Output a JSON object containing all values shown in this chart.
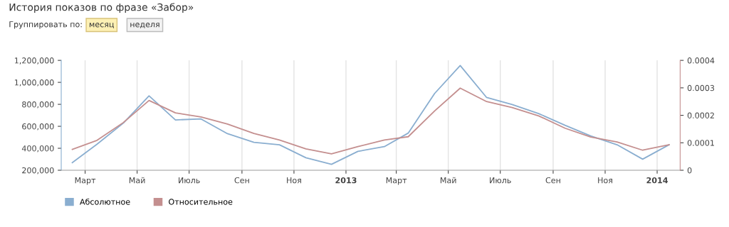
{
  "chart_data": {
    "type": "line",
    "title": "История показов по фразе «Забор»",
    "annotations": [
      "Группировать по:",
      "месяц",
      "неделя"
    ],
    "x": [
      "2012-02-15",
      "2012-03-15",
      "2012-04-15",
      "2012-05-15",
      "2012-06-15",
      "2012-07-15",
      "2012-08-15",
      "2012-09-15",
      "2012-10-15",
      "2012-11-15",
      "2012-12-15",
      "2013-01-15",
      "2013-02-15",
      "2013-03-15",
      "2013-04-15",
      "2013-05-15",
      "2013-06-15",
      "2013-07-15",
      "2013-08-15",
      "2013-09-15",
      "2013-10-15",
      "2013-11-15",
      "2013-12-15",
      "2014-01-15"
    ],
    "series": [
      {
        "name": "Абсолютное",
        "color": "#8aaed0",
        "values": [
          269000,
          437000,
          630000,
          877000,
          658000,
          667000,
          533000,
          454000,
          432000,
          314000,
          254000,
          372000,
          415000,
          538000,
          899000,
          1153000,
          862000,
          798000,
          716000,
          609000,
          512000,
          432000,
          301000,
          432000
        ]
      },
      {
        "name": "Относительное",
        "color": "#c48f8f",
        "axis": "y2",
        "values": [
          7.6e-05,
          0.000109,
          0.000174,
          0.000254,
          0.000209,
          0.000194,
          0.000168,
          0.000134,
          0.00011,
          7.8e-05,
          6e-05,
          8.6e-05,
          0.00011,
          0.000122,
          0.000216,
          0.000299,
          0.00025,
          0.000228,
          0.000198,
          0.000153,
          0.000121,
          0.000103,
          7.3e-05,
          9.3e-05
        ]
      }
    ],
    "xlim": [
      "2012-02-02",
      "2014-01-28"
    ],
    "xticks": [
      {
        "value": "2012-03-01",
        "label": "Март"
      },
      {
        "value": "2012-05-01",
        "label": "Май"
      },
      {
        "value": "2012-07-01",
        "label": "Июль"
      },
      {
        "value": "2012-09-01",
        "label": "Сен"
      },
      {
        "value": "2012-11-01",
        "label": "Ноя"
      },
      {
        "value": "2013-01-01",
        "label": "2013"
      },
      {
        "value": "2013-03-01",
        "label": "Март"
      },
      {
        "value": "2013-05-01",
        "label": "Май"
      },
      {
        "value": "2013-07-01",
        "label": "Июль"
      },
      {
        "value": "2013-09-01",
        "label": "Сен"
      },
      {
        "value": "2013-11-01",
        "label": "Ноя"
      },
      {
        "value": "2014-01-01",
        "label": "2014"
      }
    ],
    "ylim": [
      200000,
      1200000
    ],
    "yticks": [
      {
        "value": 200000,
        "label": "200,000"
      },
      {
        "value": 400000,
        "label": "400,000"
      },
      {
        "value": 600000,
        "label": "600,000"
      },
      {
        "value": 800000,
        "label": "800,000"
      },
      {
        "value": 1000000,
        "label": "1,000,000"
      },
      {
        "value": 1200000,
        "label": "1,200,000"
      }
    ],
    "y2lim": [
      0,
      0.0004
    ],
    "y2ticks": [
      0,
      0.0001,
      0.0002,
      0.0003,
      0.0004
    ],
    "grid": "x",
    "legend": "bottom left"
  }
}
